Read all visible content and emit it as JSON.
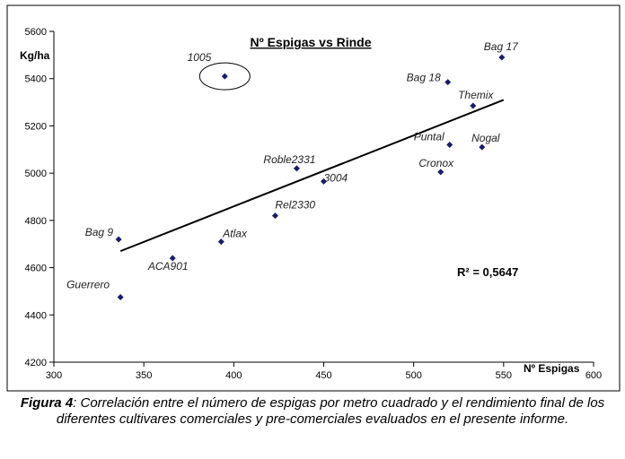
{
  "chart_data": {
    "type": "scatter",
    "title": "Nº Espigas vs Rinde",
    "xlabel": "Nº Espigas",
    "ylabel": "Kg/ha",
    "xlim": [
      300,
      600
    ],
    "ylim": [
      4200,
      5600
    ],
    "xticks": [
      "300",
      "350",
      "400",
      "450",
      "500",
      "550",
      "600"
    ],
    "yticks": [
      "4200",
      "4400",
      "4600",
      "4800",
      "5000",
      "5200",
      "5400",
      "5600"
    ],
    "points": [
      {
        "label": "Guerrero",
        "x": 337,
        "y": 4475
      },
      {
        "label": "Bag 9",
        "x": 336,
        "y": 4720
      },
      {
        "label": "ACA901",
        "x": 366,
        "y": 4640
      },
      {
        "label": "Atlax",
        "x": 393,
        "y": 4710
      },
      {
        "label": "1005",
        "x": 395,
        "y": 5410
      },
      {
        "label": "Rel2330",
        "x": 423,
        "y": 4820
      },
      {
        "label": "Roble2331",
        "x": 435,
        "y": 5020
      },
      {
        "label": "3004",
        "x": 450,
        "y": 4965
      },
      {
        "label": "Cronox",
        "x": 515,
        "y": 5005
      },
      {
        "label": "Puntal",
        "x": 520,
        "y": 5120
      },
      {
        "label": "Bag 18",
        "x": 519,
        "y": 5385
      },
      {
        "label": "Themix",
        "x": 533,
        "y": 5285
      },
      {
        "label": "Nogal",
        "x": 538,
        "y": 5110
      },
      {
        "label": "Bag 17",
        "x": 549,
        "y": 5490
      }
    ],
    "trendline": {
      "x": [
        337,
        550
      ],
      "y": [
        4670,
        5310
      ]
    },
    "r2_label": "R² = 0,5647",
    "highlight": "1005",
    "marker_color": "#1a1a6e",
    "grid": false
  },
  "caption": {
    "figure_label": "Figura 4",
    "text": ": Correlación entre el número de espigas por metro cuadrado y el rendimiento final de los diferentes cultivares comerciales y pre-comerciales evaluados en el presente informe."
  }
}
